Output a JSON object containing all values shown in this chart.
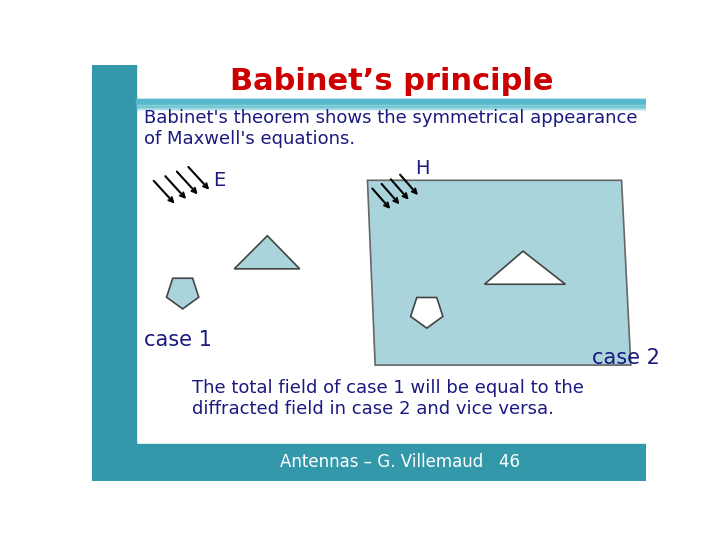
{
  "title": "Babinet’s principle",
  "title_color": "#cc0000",
  "title_fontsize": 22,
  "bg_color": "#ffffff",
  "header_bar_color": "#55bbcc",
  "left_bar_color": "#3399aa",
  "body_text": "Babinet's theorem shows the symmetrical appearance\nof Maxwell's equations.",
  "body_fontsize": 13,
  "body_color": "#1a1a80",
  "case1_label": "case 1",
  "case2_label": "case 2",
  "label_fontsize": 15,
  "label_color": "#1a1a80",
  "E_label": "E",
  "H_label": "H",
  "EH_fontsize": 14,
  "EH_color": "#1a1a80",
  "parallelogram_fill": "#aad4dc",
  "parallelogram_edge": "#666666",
  "shape_fill_case1": "#aad4dc",
  "shape_edge_case1": "#444444",
  "shape_fill_case2_tri": "#ffffff",
  "shape_fill_case2_pent": "#ffffff",
  "shape_edge_case2": "#444444",
  "bottom_bar_color": "#3399aa",
  "footer_text": "Antennas – G. Villemaud   46",
  "footer_color": "#ffffff",
  "footer_fontsize": 12,
  "body2_text": "The total field of case 1 will be equal to the\ndiffracted field in case 2 and vice versa."
}
